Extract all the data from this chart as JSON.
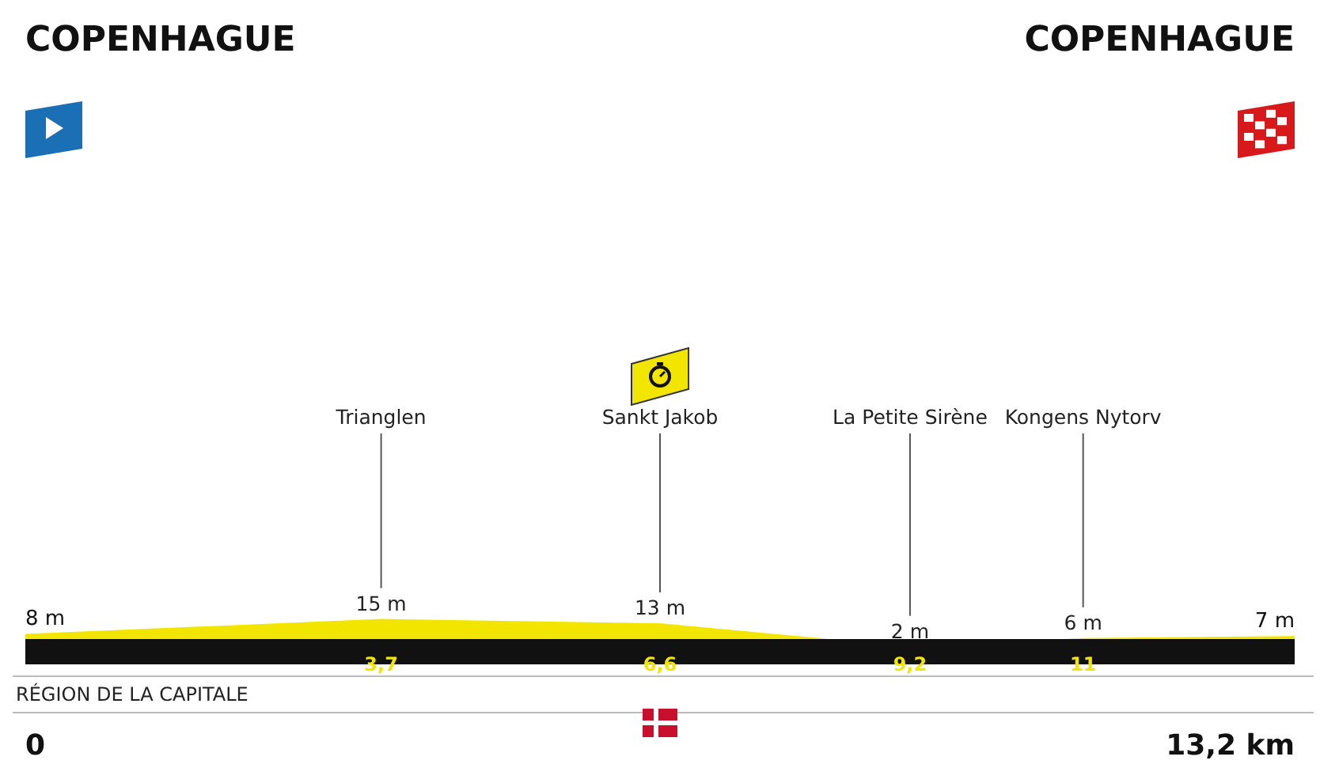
{
  "chart_data": {
    "type": "area",
    "xlim": [
      0,
      13.2
    ],
    "ylim": [
      0,
      300
    ],
    "xticks": [
      {
        "value": 3.7,
        "label": "3,7"
      },
      {
        "value": 6.6,
        "label": "6,6"
      },
      {
        "value": 9.2,
        "label": "9,2"
      },
      {
        "value": 11,
        "label": "11"
      }
    ],
    "series": [
      {
        "color": "#f2e600",
        "x": [
          0,
          3.7,
          6.6,
          9.2,
          11,
          13.2
        ],
        "values": [
          8,
          15,
          13,
          2,
          6,
          7
        ],
        "value_labels": [
          "8 m",
          "15 m",
          "13 m",
          "2 m",
          "6 m",
          "7 m"
        ]
      }
    ],
    "annotations": [
      "COPENHAGUE",
      "Trianglen",
      "Sankt Jakob",
      "La Petite Sirène",
      "Kongens Nytorv",
      "COPENHAGUE",
      "RÉGION DE LA CAPITALE",
      "0",
      "13,2 km"
    ],
    "tick_labels": "x",
    "grid": false,
    "legend": false
  }
}
